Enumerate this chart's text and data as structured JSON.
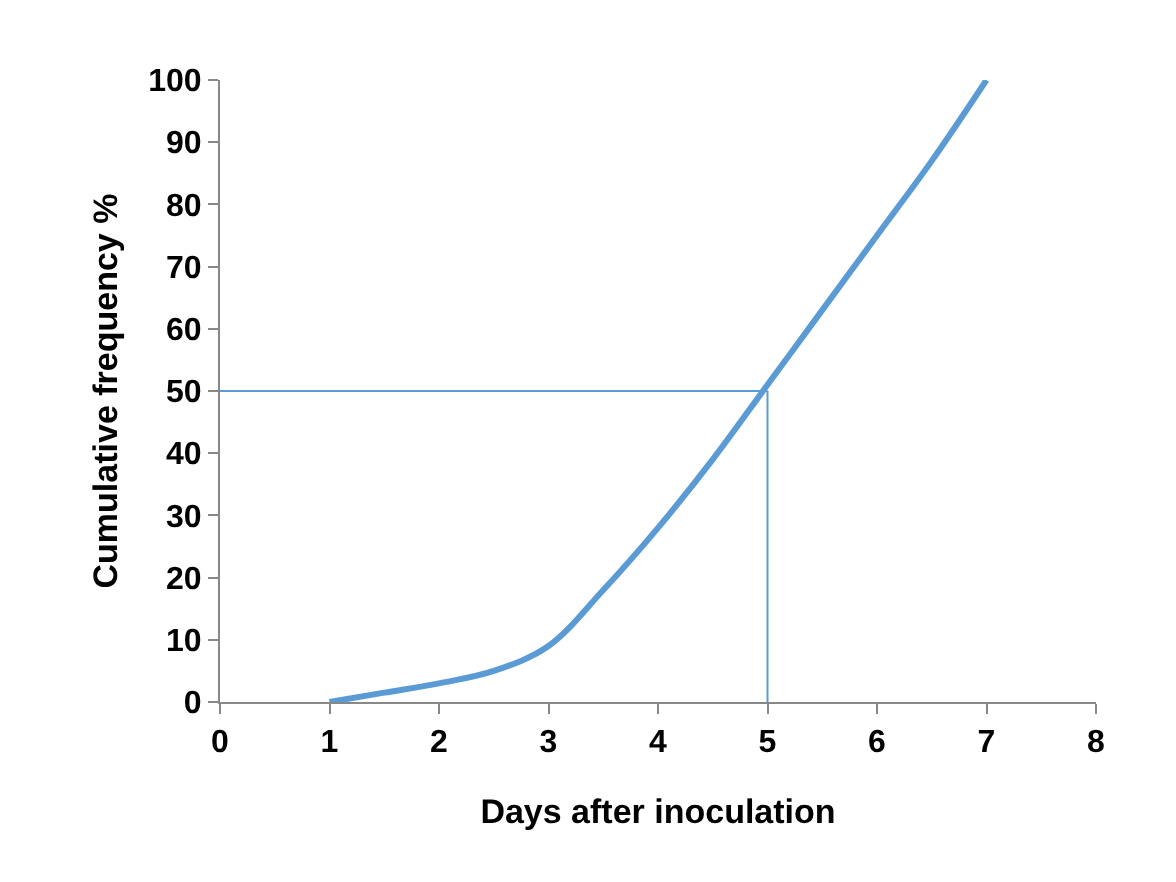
{
  "chart_data": {
    "type": "line",
    "xlabel": "Days after inoculation",
    "ylabel": "Cumulative frequency %",
    "x": [
      1,
      1.5,
      2,
      2.5,
      3,
      3.5,
      4,
      4.5,
      5,
      5.5,
      6,
      6.5,
      7
    ],
    "series": [
      {
        "color": "#5b9bd5",
        "values": [
          0,
          1.5,
          3,
          5,
          9,
          18,
          28,
          39,
          51,
          63,
          75,
          87,
          100
        ]
      }
    ],
    "xlim": [
      0,
      8
    ],
    "xticks": [
      0,
      1,
      2,
      3,
      4,
      5,
      6,
      7,
      8
    ],
    "ylim": [
      0,
      100
    ],
    "yticks": [
      0,
      10,
      20,
      30,
      40,
      50,
      60,
      70,
      80,
      90,
      100
    ],
    "grid": false,
    "marker": "none",
    "line_style": "solid",
    "ref_lines": [
      {
        "axis": "y",
        "value": 50,
        "color": "#5b9bd5"
      },
      {
        "axis": "x",
        "value": 5,
        "color": "#5b9bd5"
      }
    ]
  }
}
